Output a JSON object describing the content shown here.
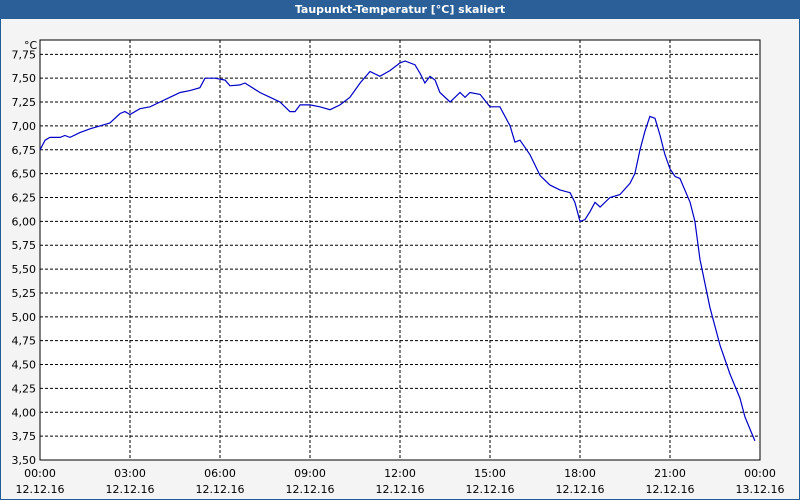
{
  "window_title": "Taupunkt-Temperatur [°C] skaliert",
  "chart_data": {
    "type": "line",
    "y_unit": "°C",
    "x": [
      0,
      0.17,
      0.33,
      0.67,
      0.83,
      1,
      1.33,
      1.67,
      2,
      2.33,
      2.67,
      2.83,
      3,
      3.33,
      3.67,
      4,
      4.33,
      4.67,
      5,
      5.33,
      5.5,
      5.83,
      6.17,
      6.33,
      6.67,
      6.83,
      7.33,
      7.67,
      8,
      8.33,
      8.5,
      8.67,
      9,
      9.33,
      9.67,
      10,
      10.33,
      10.67,
      11,
      11.33,
      11.67,
      12,
      12.17,
      12.5,
      12.67,
      12.83,
      13,
      13.17,
      13.33,
      13.67,
      14,
      14.17,
      14.33,
      14.67,
      15,
      15.33,
      15.67,
      15.83,
      16,
      16.33,
      16.67,
      17,
      17.33,
      17.67,
      17.83,
      18,
      18.17,
      18.33,
      18.5,
      18.67,
      19,
      19.33,
      19.67,
      19.83,
      20,
      20.17,
      20.33,
      20.5,
      20.67,
      20.83,
      21,
      21.17,
      21.33,
      21.67,
      21.83,
      22,
      22.33,
      22.67,
      23,
      23.33,
      23.5,
      23.83
    ],
    "series": [
      {
        "name": "Taupunkt",
        "color": "#0000c8",
        "values": [
          6.75,
          6.85,
          6.88,
          6.88,
          6.9,
          6.88,
          6.93,
          6.97,
          7.0,
          7.03,
          7.13,
          7.15,
          7.12,
          7.18,
          7.2,
          7.25,
          7.3,
          7.35,
          7.37,
          7.4,
          7.5,
          7.5,
          7.48,
          7.42,
          7.43,
          7.45,
          7.35,
          7.3,
          7.25,
          7.15,
          7.15,
          7.22,
          7.22,
          7.2,
          7.17,
          7.22,
          7.3,
          7.45,
          7.57,
          7.52,
          7.58,
          7.66,
          7.68,
          7.64,
          7.55,
          7.45,
          7.52,
          7.48,
          7.35,
          7.25,
          7.35,
          7.3,
          7.35,
          7.33,
          7.2,
          7.2,
          7.0,
          6.83,
          6.85,
          6.7,
          6.48,
          6.38,
          6.33,
          6.3,
          6.2,
          6.0,
          6.02,
          6.1,
          6.2,
          6.15,
          6.25,
          6.28,
          6.4,
          6.5,
          6.75,
          6.95,
          7.1,
          7.08,
          6.9,
          6.7,
          6.55,
          6.47,
          6.45,
          6.2,
          6.0,
          5.6,
          5.1,
          4.7,
          4.4,
          4.15,
          3.95,
          3.7
        ]
      }
    ],
    "xlim": [
      0,
      24
    ],
    "xticks": [
      {
        "value": 0,
        "label": "00:00"
      },
      {
        "value": 3,
        "label": "03:00"
      },
      {
        "value": 6,
        "label": "06:00"
      },
      {
        "value": 9,
        "label": "09:00"
      },
      {
        "value": 12,
        "label": "12:00"
      },
      {
        "value": 15,
        "label": "15:00"
      },
      {
        "value": 18,
        "label": "18:00"
      },
      {
        "value": 21,
        "label": "21:00"
      },
      {
        "value": 24,
        "label": "00:00"
      }
    ],
    "xtick_dates": [
      "12.12.16",
      "12.12.16",
      "12.12.16",
      "12.12.16",
      "12.12.16",
      "12.12.16",
      "12.12.16",
      "12.12.16",
      "13.12.16"
    ],
    "ylim": [
      3.5,
      7.9
    ],
    "yticks": [
      {
        "value": 3.5,
        "label": "3,50"
      },
      {
        "value": 3.75,
        "label": "3,75"
      },
      {
        "value": 4,
        "label": "4,00"
      },
      {
        "value": 4.25,
        "label": "4,25"
      },
      {
        "value": 4.5,
        "label": "4,50"
      },
      {
        "value": 4.75,
        "label": "4,75"
      },
      {
        "value": 5,
        "label": "5,00"
      },
      {
        "value": 5.25,
        "label": "5,25"
      },
      {
        "value": 5.5,
        "label": "5,50"
      },
      {
        "value": 5.75,
        "label": "5,75"
      },
      {
        "value": 6,
        "label": "6,00"
      },
      {
        "value": 6.25,
        "label": "6,25"
      },
      {
        "value": 6.5,
        "label": "6,50"
      },
      {
        "value": 6.75,
        "label": "6,75"
      },
      {
        "value": 7,
        "label": "7,00"
      },
      {
        "value": 7.25,
        "label": "7,25"
      },
      {
        "value": 7.5,
        "label": "7,50"
      },
      {
        "value": 7.75,
        "label": "7,75"
      }
    ],
    "grid": true
  }
}
